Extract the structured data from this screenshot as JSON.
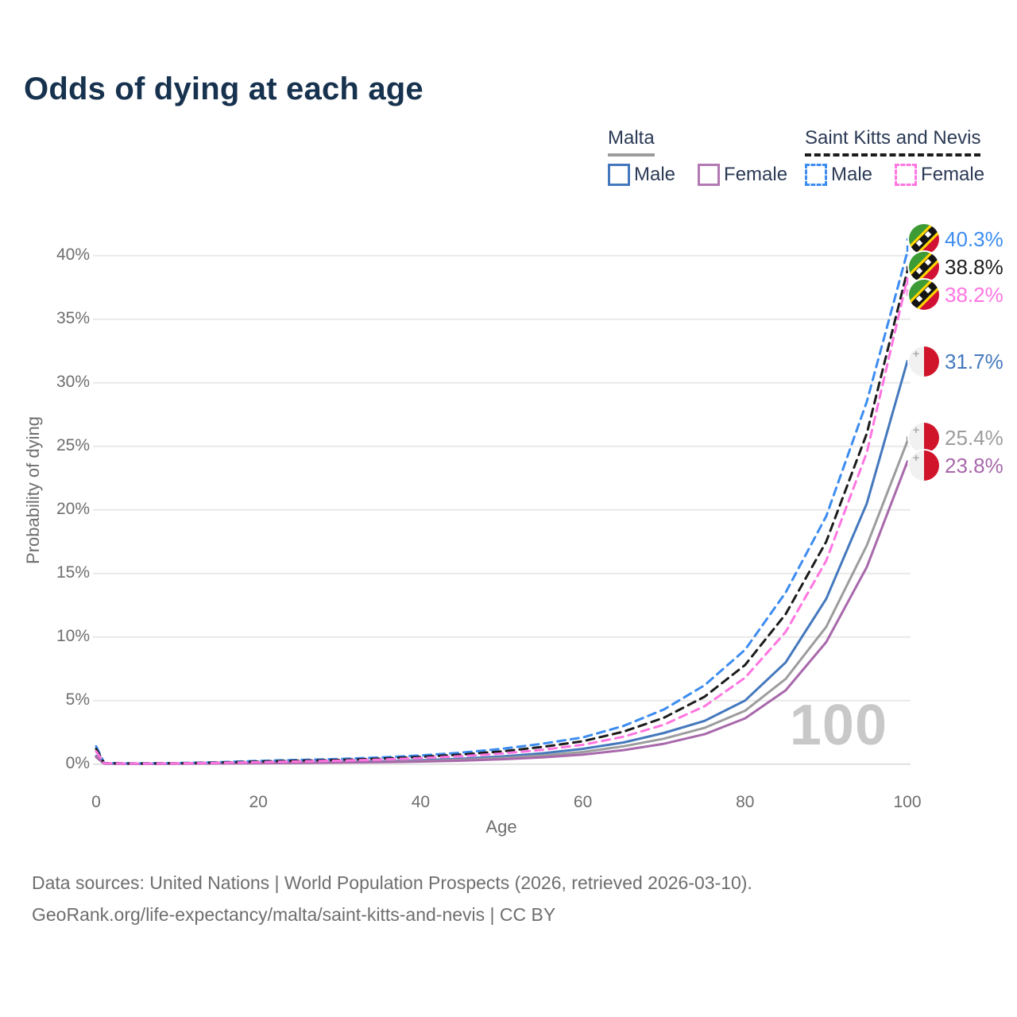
{
  "title": "Odds of dying at each age",
  "legend": {
    "malta": {
      "label": "Malta",
      "male": "Male",
      "female": "Female"
    },
    "skn": {
      "label": "Saint Kitts and Nevis",
      "male": "Male",
      "female": "Female"
    }
  },
  "axes": {
    "x_label": "Age",
    "y_label": "Probability of dying",
    "x_tick_values": [
      0,
      20,
      40,
      60,
      80,
      100
    ],
    "x_tick_labels": [
      "0",
      "20",
      "40",
      "60",
      "80",
      "100"
    ],
    "y_tick_values": [
      0,
      5,
      10,
      15,
      20,
      25,
      30,
      35,
      40
    ],
    "y_tick_labels": [
      "0%",
      "5%",
      "10%",
      "15%",
      "20%",
      "25%",
      "30%",
      "35%",
      "40%"
    ]
  },
  "watermark": "100",
  "colors": {
    "skn_male": "#3c8cf0",
    "skn_both": "#1c1c1c",
    "skn_female": "#ff75e1",
    "malta_male": "#4478bd",
    "malta_both": "#9c9c9c",
    "malta_female": "#a868ab",
    "legend_malta_male_swatch": "#4478bd",
    "legend_malta_female_swatch": "#b279b2",
    "legend_skn_male_swatch": "#3c8cf0",
    "legend_skn_female_swatch": "#ff75e1",
    "grid": "#e9e9e9",
    "zero_line": "#e0e0e0",
    "title_text": "#17324e",
    "muted_text": "#6e6e6e",
    "watermark_text": "#c8c8c8"
  },
  "end_labels": [
    {
      "label": "40.3%",
      "value": 40.3,
      "series": "skn_male",
      "flag": "skn",
      "dashed": true
    },
    {
      "label": "38.8%",
      "value": 38.8,
      "series": "skn_both",
      "flag": "skn",
      "dashed": true
    },
    {
      "label": "38.2%",
      "value": 38.2,
      "series": "skn_female",
      "flag": "skn",
      "dashed": true
    },
    {
      "label": "31.7%",
      "value": 31.7,
      "series": "malta_male",
      "flag": "malta",
      "dashed": false
    },
    {
      "label": "25.4%",
      "value": 25.4,
      "series": "malta_both",
      "flag": "malta",
      "dashed": false
    },
    {
      "label": "23.8%",
      "value": 23.8,
      "series": "malta_female",
      "flag": "malta",
      "dashed": false
    }
  ],
  "footer": {
    "line1": "Data sources: United Nations | World Population Prospects (2026, retrieved 2026-03-10).",
    "line2": "GeoRank.org/life-expectancy/malta/saint-kitts-and-nevis | CC BY"
  },
  "chart_data": {
    "type": "line",
    "title": "Odds of dying at each age",
    "xlabel": "Age",
    "ylabel": "Probability of dying",
    "xlim": [
      0,
      100
    ],
    "ylim": [
      0,
      42
    ],
    "grid": true,
    "legend_position": "top-right",
    "x": [
      0,
      1,
      5,
      10,
      15,
      20,
      25,
      30,
      35,
      40,
      45,
      50,
      55,
      60,
      65,
      70,
      75,
      80,
      85,
      90,
      95,
      100
    ],
    "series": [
      {
        "name": "Malta — Male",
        "color_key": "malta_male",
        "dashed": false,
        "values": [
          0.65,
          0.04,
          0.03,
          0.04,
          0.08,
          0.11,
          0.14,
          0.17,
          0.22,
          0.3,
          0.42,
          0.6,
          0.85,
          1.2,
          1.7,
          2.45,
          3.4,
          5.0,
          8.0,
          13.0,
          20.5,
          31.7
        ]
      },
      {
        "name": "Malta — Both sexes",
        "color_key": "malta_both",
        "dashed": false,
        "values": [
          0.6,
          0.04,
          0.03,
          0.04,
          0.06,
          0.09,
          0.11,
          0.14,
          0.18,
          0.25,
          0.34,
          0.48,
          0.68,
          0.95,
          1.4,
          2.0,
          2.85,
          4.2,
          6.7,
          10.8,
          17.2,
          25.4
        ]
      },
      {
        "name": "Malta — Female",
        "color_key": "malta_female",
        "dashed": false,
        "values": [
          0.55,
          0.03,
          0.02,
          0.03,
          0.05,
          0.07,
          0.09,
          0.12,
          0.15,
          0.2,
          0.27,
          0.38,
          0.53,
          0.75,
          1.1,
          1.6,
          2.35,
          3.6,
          5.8,
          9.6,
          15.5,
          23.8
        ]
      },
      {
        "name": "Saint Kitts and Nevis — Male",
        "color_key": "skn_male",
        "dashed": true,
        "values": [
          1.4,
          0.08,
          0.06,
          0.08,
          0.15,
          0.25,
          0.33,
          0.4,
          0.52,
          0.68,
          0.9,
          1.2,
          1.6,
          2.1,
          3.0,
          4.3,
          6.2,
          9.0,
          13.5,
          19.5,
          28.5,
          40.3
        ]
      },
      {
        "name": "Saint Kitts and Nevis — Both sexes",
        "color_key": "skn_both",
        "dashed": true,
        "values": [
          1.2,
          0.07,
          0.05,
          0.07,
          0.12,
          0.2,
          0.27,
          0.33,
          0.43,
          0.57,
          0.75,
          1.0,
          1.35,
          1.8,
          2.55,
          3.65,
          5.3,
          7.8,
          11.8,
          17.5,
          26.0,
          38.8
        ]
      },
      {
        "name": "Saint Kitts and Nevis — Female",
        "color_key": "skn_female",
        "dashed": true,
        "values": [
          1.0,
          0.06,
          0.04,
          0.06,
          0.1,
          0.15,
          0.21,
          0.27,
          0.35,
          0.47,
          0.62,
          0.83,
          1.12,
          1.52,
          2.15,
          3.1,
          4.55,
          6.8,
          10.4,
          16.0,
          24.5,
          38.2
        ]
      }
    ]
  }
}
